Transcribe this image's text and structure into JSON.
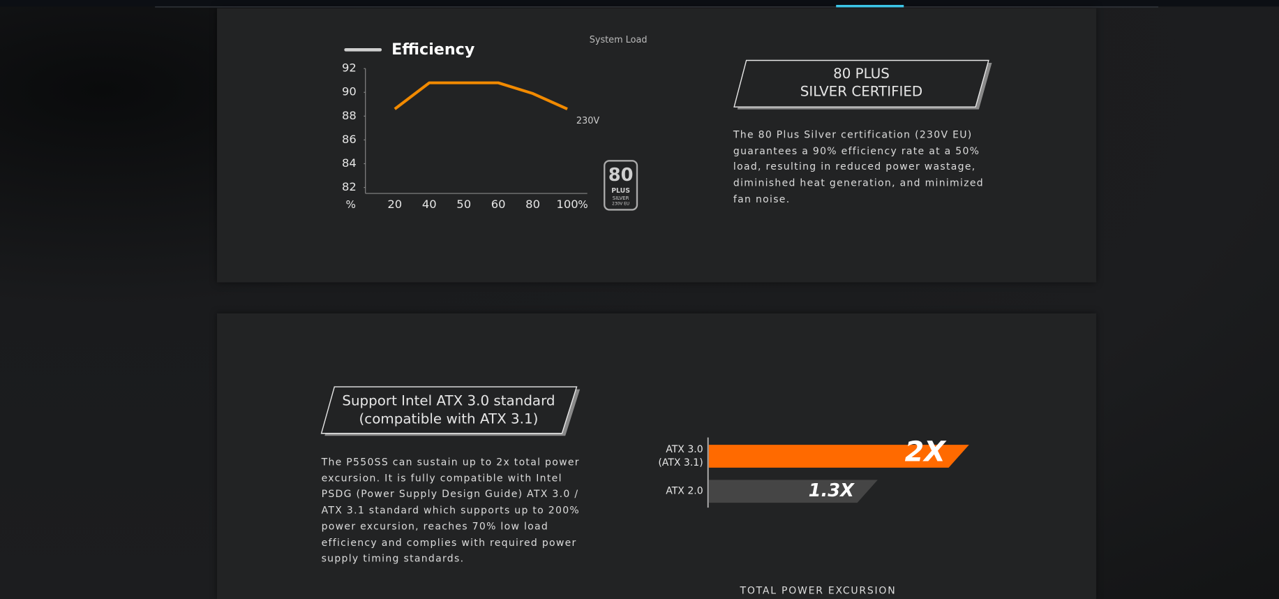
{
  "chart_data": [
    {
      "type": "line",
      "title": "Efficiency",
      "x_label": "System Load",
      "categories": [
        "20",
        "40",
        "50",
        "60",
        "80",
        "100"
      ],
      "x_unit": "%",
      "y_unit": "%",
      "ylim": [
        81.5,
        92
      ],
      "yticks": [
        82,
        84,
        86,
        88,
        90,
        92
      ],
      "series": [
        {
          "name": "230V",
          "color": "#f28a00",
          "values": [
            88.6,
            90.8,
            90.8,
            90.8,
            89.9,
            88.6
          ]
        }
      ]
    },
    {
      "type": "hbar",
      "title": "TOTAL POWER EXCURSION",
      "categories": [
        "ATX 3.0\n(ATX 3.1)",
        "ATX 2.0"
      ],
      "values": [
        2,
        1.3
      ],
      "value_labels": [
        "2X",
        "1.3X"
      ],
      "colors": [
        "#ff6a00",
        "#454545"
      ],
      "xlim": [
        0,
        2
      ]
    }
  ],
  "badge": {
    "number": "80",
    "brand": "PLUS",
    "grade": "SILVER",
    "region": "230V EU"
  },
  "certification": {
    "heading": [
      "80 PLUS",
      "SILVER CERTIFIED"
    ],
    "text": "The 80 Plus Silver certification (230V EU) guarantees a 90% efficiency rate at a 50% load, resulting in reduced power wastage, diminished heat generation, and minimized fan noise."
  },
  "atx": {
    "heading": [
      "Support Intel ATX 3.0 standard",
      "(compatible with ATX 3.1)"
    ],
    "text": "The P550SS can sustain up to 2x total power excursion. It is fully compatible with Intel PSDG (Power Supply Design Guide) ATX 3.0 / ATX 3.1 standard which supports up to 200% power excursion, reaches 70% low load efficiency and complies with required power supply timing standards."
  }
}
